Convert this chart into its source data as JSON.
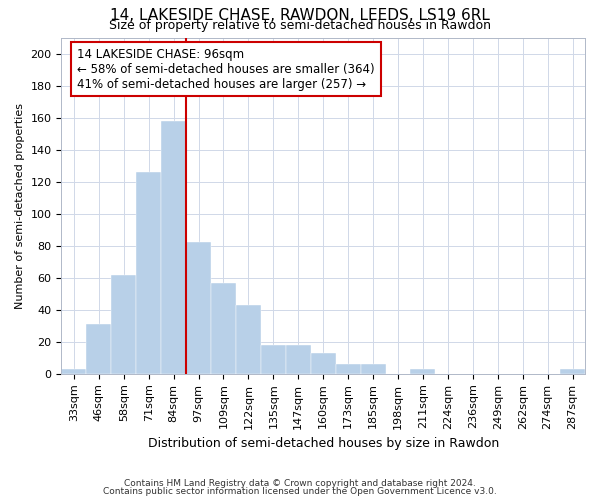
{
  "title": "14, LAKESIDE CHASE, RAWDON, LEEDS, LS19 6RL",
  "subtitle": "Size of property relative to semi-detached houses in Rawdon",
  "xlabel": "Distribution of semi-detached houses by size in Rawdon",
  "ylabel": "Number of semi-detached properties",
  "categories": [
    "33sqm",
    "46sqm",
    "58sqm",
    "71sqm",
    "84sqm",
    "97sqm",
    "109sqm",
    "122sqm",
    "135sqm",
    "147sqm",
    "160sqm",
    "173sqm",
    "185sqm",
    "198sqm",
    "211sqm",
    "224sqm",
    "236sqm",
    "249sqm",
    "262sqm",
    "274sqm",
    "287sqm"
  ],
  "values": [
    3,
    31,
    62,
    126,
    158,
    82,
    57,
    43,
    18,
    18,
    13,
    6,
    6,
    0,
    3,
    0,
    0,
    0,
    0,
    0,
    3
  ],
  "property_bin_index": 4,
  "bar_color": "#b8d0e8",
  "line_color": "#cc0000",
  "annotation_line1": "14 LAKESIDE CHASE: 96sqm",
  "annotation_line2": "← 58% of semi-detached houses are smaller (364)",
  "annotation_line3": "41% of semi-detached houses are larger (257) →",
  "footer1": "Contains HM Land Registry data © Crown copyright and database right 2024.",
  "footer2": "Contains public sector information licensed under the Open Government Licence v3.0.",
  "ylim": [
    0,
    210
  ],
  "yticks": [
    0,
    20,
    40,
    60,
    80,
    100,
    120,
    140,
    160,
    180,
    200
  ],
  "title_fontsize": 11,
  "subtitle_fontsize": 9,
  "tick_fontsize": 8,
  "ylabel_fontsize": 8,
  "xlabel_fontsize": 9
}
